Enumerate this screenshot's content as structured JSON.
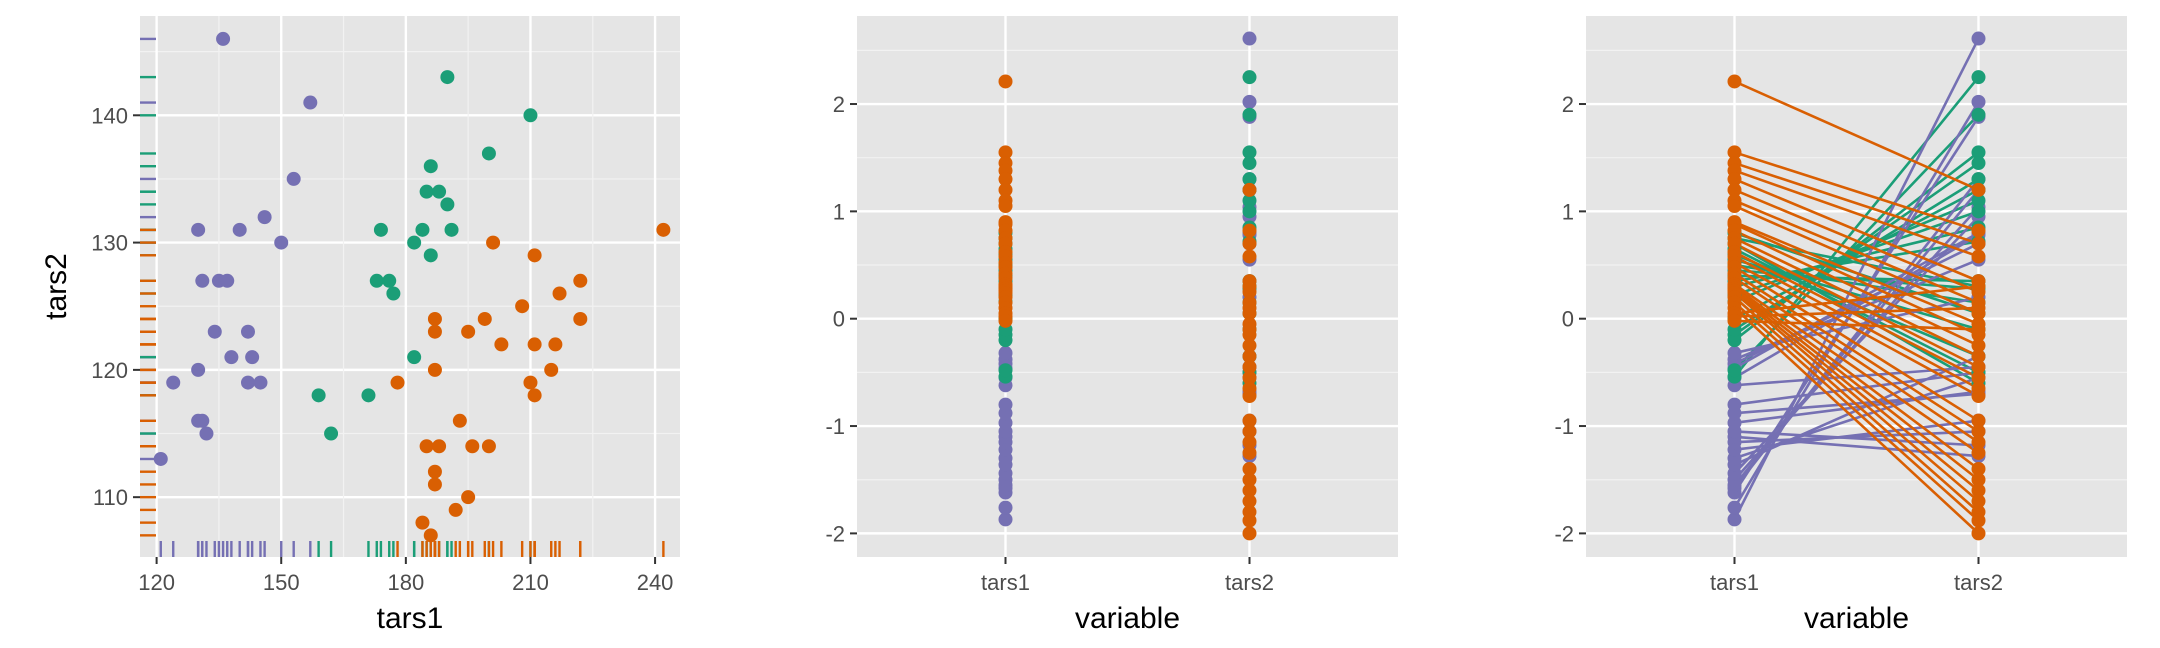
{
  "colors": {
    "panel_bg": "#e5e5e5",
    "grid_major": "#ffffff",
    "grid_minor": "#f2f2f2",
    "tick": "#333333",
    "tick_text": "#4d4d4d",
    "group_a": "#7570b3",
    "group_b": "#1b9e77",
    "group_c": "#d95f02"
  },
  "chart_data": [
    {
      "type": "scatter",
      "xlabel": "tars1",
      "ylabel": "tars2",
      "xlim": [
        116,
        246
      ],
      "ylim": [
        105.3,
        147.8
      ],
      "xticks": [
        120,
        150,
        180,
        210,
        240
      ],
      "yticks": [
        110,
        120,
        130,
        140
      ],
      "marginal_rugs": true,
      "grid": true,
      "series": [
        {
          "color_key": "group_a",
          "points": [
            [
              121,
              113
            ],
            [
              124,
              119
            ],
            [
              130,
              116
            ],
            [
              131,
              116
            ],
            [
              132,
              115
            ],
            [
              130,
              120
            ],
            [
              130,
              131
            ],
            [
              131,
              127
            ],
            [
              135,
              127
            ],
            [
              137,
              127
            ],
            [
              134,
              123
            ],
            [
              138,
              121
            ],
            [
              136,
              146
            ],
            [
              140,
              131
            ],
            [
              142,
              123
            ],
            [
              142,
              119
            ],
            [
              143,
              121
            ],
            [
              145,
              119
            ],
            [
              146,
              132
            ],
            [
              150,
              130
            ],
            [
              153,
              135
            ],
            [
              157,
              141
            ]
          ]
        },
        {
          "color_key": "group_b",
          "points": [
            [
              159,
              118
            ],
            [
              162,
              115
            ],
            [
              171,
              118
            ],
            [
              173,
              127
            ],
            [
              174,
              131
            ],
            [
              176,
              127
            ],
            [
              177,
              126
            ],
            [
              182,
              121
            ],
            [
              182,
              130
            ],
            [
              184,
              131
            ],
            [
              185,
              134
            ],
            [
              186,
              136
            ],
            [
              186,
              129
            ],
            [
              188,
              134
            ],
            [
              190,
              133
            ],
            [
              190,
              143
            ],
            [
              191,
              131
            ],
            [
              200,
              137
            ],
            [
              210,
              140
            ]
          ]
        },
        {
          "color_key": "group_c",
          "points": [
            [
              178,
              119
            ],
            [
              184,
              108
            ],
            [
              185,
              114
            ],
            [
              186,
              107
            ],
            [
              187,
              124
            ],
            [
              187,
              123
            ],
            [
              187,
              120
            ],
            [
              187,
              112
            ],
            [
              187,
              111
            ],
            [
              188,
              114
            ],
            [
              192,
              109
            ],
            [
              193,
              116
            ],
            [
              195,
              110
            ],
            [
              195,
              123
            ],
            [
              196,
              114
            ],
            [
              199,
              124
            ],
            [
              200,
              114
            ],
            [
              201,
              130
            ],
            [
              203,
              122
            ],
            [
              208,
              125
            ],
            [
              210,
              119
            ],
            [
              211,
              118
            ],
            [
              211,
              129
            ],
            [
              211,
              122
            ],
            [
              215,
              120
            ],
            [
              216,
              122
            ],
            [
              217,
              126
            ],
            [
              222,
              124
            ],
            [
              222,
              127
            ],
            [
              242,
              131
            ]
          ]
        }
      ]
    },
    {
      "type": "scatter",
      "xlabel": "variable",
      "ylabel": "",
      "categories": [
        "tars1",
        "tars2"
      ],
      "ylim": [
        -2.22,
        2.82
      ],
      "yticks": [
        -2,
        -1,
        0,
        1,
        2
      ],
      "grid": true,
      "series": [
        {
          "color_key": "group_a",
          "values": {
            "tars1": [
              -1.87,
              -1.76,
              -1.62,
              -1.58,
              -1.55,
              -1.5,
              -1.44,
              -1.36,
              -1.3,
              -1.22,
              -1.15,
              -1.1,
              -1.05,
              -0.97,
              -0.88,
              -0.8,
              -0.62,
              -0.55,
              -0.46,
              -0.42,
              -0.38,
              -0.32
            ],
            "tars2": [
              2.61,
              2.02,
              1.88,
              1.3,
              1.2,
              1.04,
              0.95,
              -0.35,
              -0.55,
              -0.95,
              -1.05,
              -1.28,
              -1.18,
              -0.68,
              -0.7,
              -0.5,
              -0.45,
              0.78,
              0.8,
              0.7,
              0.55,
              0.2
            ]
          }
        },
        {
          "color_key": "group_b",
          "values": {
            "tars1": [
              -0.54,
              -0.48,
              -0.2,
              -0.15,
              -0.1,
              0.0,
              0.16,
              0.22,
              0.3,
              0.35,
              0.4,
              0.45,
              0.5,
              0.55,
              0.6,
              0.65,
              0.7,
              0.75,
              0.8
            ],
            "tars2": [
              2.25,
              1.9,
              1.55,
              1.45,
              1.3,
              1.2,
              1.1,
              1.0,
              0.85,
              0.72,
              0.35,
              0.28,
              0.15,
              -0.1,
              -0.35,
              -0.5,
              -0.6,
              0.3,
              0.05
            ]
          }
        },
        {
          "color_key": "group_c",
          "values": {
            "tars1": [
              2.21,
              1.55,
              1.45,
              1.38,
              1.3,
              1.2,
              1.1,
              1.05,
              0.9,
              0.88,
              0.82,
              0.75,
              0.7,
              0.62,
              0.58,
              0.52,
              0.48,
              0.42,
              0.38,
              0.32,
              0.3,
              0.28,
              0.26,
              0.24,
              0.2,
              0.15,
              0.1,
              0.05,
              0.02,
              -0.02
            ],
            "tars2": [
              1.2,
              0.82,
              0.7,
              0.58,
              0.35,
              0.25,
              0.15,
              0.05,
              -0.05,
              -0.15,
              -0.25,
              -0.35,
              -0.45,
              -0.55,
              -0.65,
              -0.72,
              -0.95,
              -1.05,
              -1.15,
              -1.25,
              -1.4,
              -1.5,
              -1.6,
              -1.7,
              -1.8,
              -1.88,
              -2.0,
              0.3,
              0.1,
              -0.1
            ]
          }
        }
      ]
    },
    {
      "type": "line",
      "xlabel": "variable",
      "ylabel": "",
      "categories": [
        "tars1",
        "tars2"
      ],
      "ylim": [
        -2.22,
        2.82
      ],
      "yticks": [
        -2,
        -1,
        0,
        1,
        2
      ],
      "grid": true,
      "note_same_data_as": "panel 2, each observation connected by a line from tars1 to tars2"
    }
  ]
}
